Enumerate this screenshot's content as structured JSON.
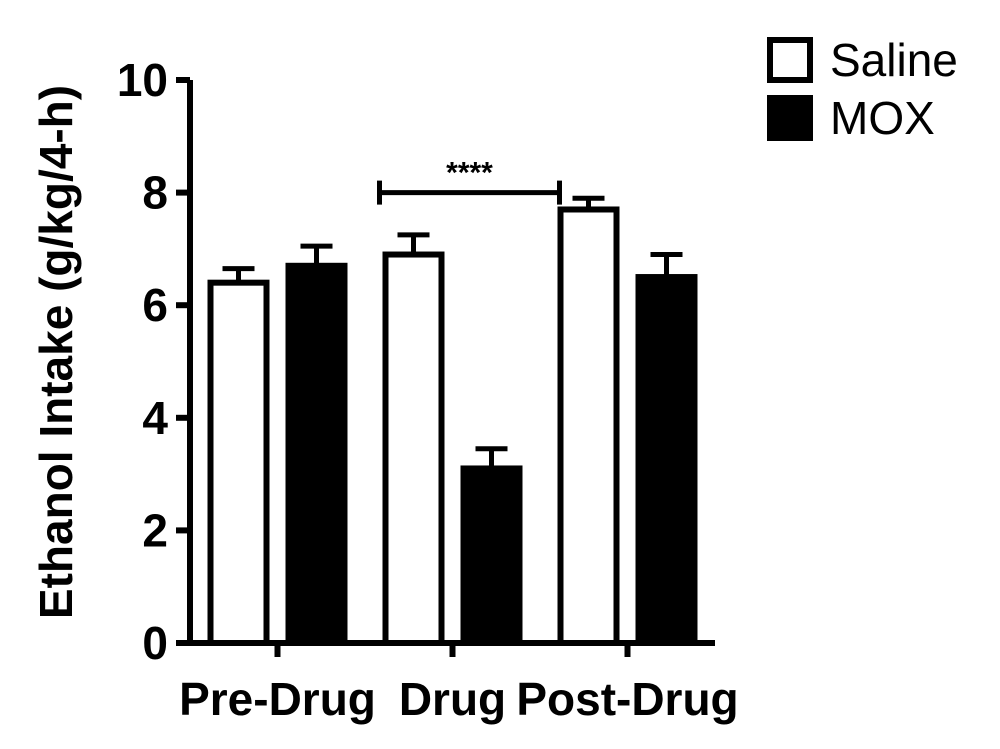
{
  "chart_data": {
    "type": "bar",
    "categories": [
      "Pre-Drug",
      "Drug",
      "Post-Drug"
    ],
    "series": [
      {
        "name": "Saline",
        "values": [
          6.4,
          6.9,
          7.7
        ],
        "errors": [
          0.25,
          0.35,
          0.2
        ],
        "fill": "#ffffff"
      },
      {
        "name": "MOX",
        "values": [
          6.7,
          3.1,
          6.5
        ],
        "errors": [
          0.35,
          0.35,
          0.4
        ],
        "fill": "#000000"
      }
    ],
    "ylabel": "Ethanol Intake (g/kg/4-h)",
    "xlabel": "",
    "ylim": [
      0,
      10
    ],
    "yticks": [
      "0",
      "2",
      "4",
      "6",
      "8",
      "10"
    ],
    "legend": {
      "placement": "top-right"
    },
    "annotation": {
      "text": "****",
      "category": "Drug"
    },
    "grid": false
  }
}
